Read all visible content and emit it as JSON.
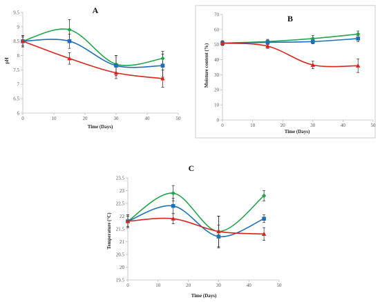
{
  "colors": {
    "green": "#22a34a",
    "blue": "#1f6fb5",
    "red": "#d9231b",
    "errorbar": "#222222"
  },
  "chart_data": [
    {
      "type": "line",
      "title": "A",
      "xlabel": "Time (Days)",
      "ylabel": "pH",
      "x": [
        0,
        15,
        30,
        45
      ],
      "xlim": [
        0,
        50
      ],
      "ylim": [
        6,
        9.5
      ],
      "xticks": [
        "0",
        "10",
        "20",
        "30",
        "40",
        "50"
      ],
      "yticks": [
        "6",
        "6.5",
        "7",
        "7.5",
        "8",
        "8.5",
        "9",
        "9.5"
      ],
      "grid": false,
      "smooth": true,
      "series": [
        {
          "color": "green",
          "marker": "diamond",
          "values": [
            8.5,
            8.9,
            7.7,
            7.9
          ],
          "errors": [
            0.2,
            0.35,
            0.3,
            0.25
          ]
        },
        {
          "color": "blue",
          "marker": "square",
          "values": [
            8.5,
            8.5,
            7.65,
            7.65
          ],
          "errors": [
            0.2,
            0.25,
            0.35,
            0.4
          ]
        },
        {
          "color": "red",
          "marker": "triangle",
          "values": [
            8.5,
            7.9,
            7.4,
            7.2
          ],
          "errors": [
            0.15,
            0.2,
            0.2,
            0.3
          ]
        }
      ]
    },
    {
      "type": "line",
      "title": "B",
      "xlabel": "Time (Days)",
      "ylabel": "Moisture content (%)",
      "x": [
        0,
        15,
        30,
        45
      ],
      "xlim": [
        0,
        50
      ],
      "ylim": [
        0,
        70
      ],
      "xticks": [
        "0",
        "10",
        "20",
        "30",
        "40",
        "50"
      ],
      "yticks": [
        "0",
        "10",
        "20",
        "30",
        "40",
        "50",
        "60",
        "70"
      ],
      "grid": false,
      "smooth": true,
      "series": [
        {
          "color": "green",
          "marker": "diamond",
          "values": [
            51,
            52,
            54,
            57
          ],
          "errors": [
            1.5,
            1.5,
            2.0,
            2.0
          ]
        },
        {
          "color": "blue",
          "marker": "square",
          "values": [
            51,
            51.5,
            52,
            54
          ],
          "errors": [
            1.5,
            1.5,
            1.5,
            2.0
          ]
        },
        {
          "color": "red",
          "marker": "triangle",
          "values": [
            51,
            49,
            36.5,
            36
          ],
          "errors": [
            1.5,
            1.5,
            2.5,
            4.5
          ]
        }
      ]
    },
    {
      "type": "line",
      "title": "C",
      "xlabel": "Time (Days)",
      "ylabel": "Temperature (°C)",
      "x": [
        0,
        15,
        30,
        45
      ],
      "xlim": [
        0,
        50
      ],
      "ylim": [
        19.5,
        23.5
      ],
      "xticks": [
        "0",
        "10",
        "20",
        "30",
        "40",
        "50"
      ],
      "yticks": [
        "19.5",
        "20",
        "20.5",
        "21",
        "21.5",
        "22",
        "22.5",
        "23",
        "23.5"
      ],
      "grid": false,
      "smooth": true,
      "series": [
        {
          "color": "green",
          "marker": "diamond",
          "values": [
            21.8,
            22.9,
            21.4,
            22.8
          ],
          "errors": [
            0.25,
            0.3,
            0.6,
            0.2
          ]
        },
        {
          "color": "blue",
          "marker": "square",
          "values": [
            21.8,
            22.4,
            21.2,
            21.9
          ],
          "errors": [
            0.25,
            0.3,
            0.45,
            0.15
          ]
        },
        {
          "color": "red",
          "marker": "triangle",
          "values": [
            21.8,
            21.9,
            21.4,
            21.3
          ],
          "errors": [
            0.2,
            0.2,
            0.6,
            0.25
          ]
        }
      ]
    }
  ]
}
